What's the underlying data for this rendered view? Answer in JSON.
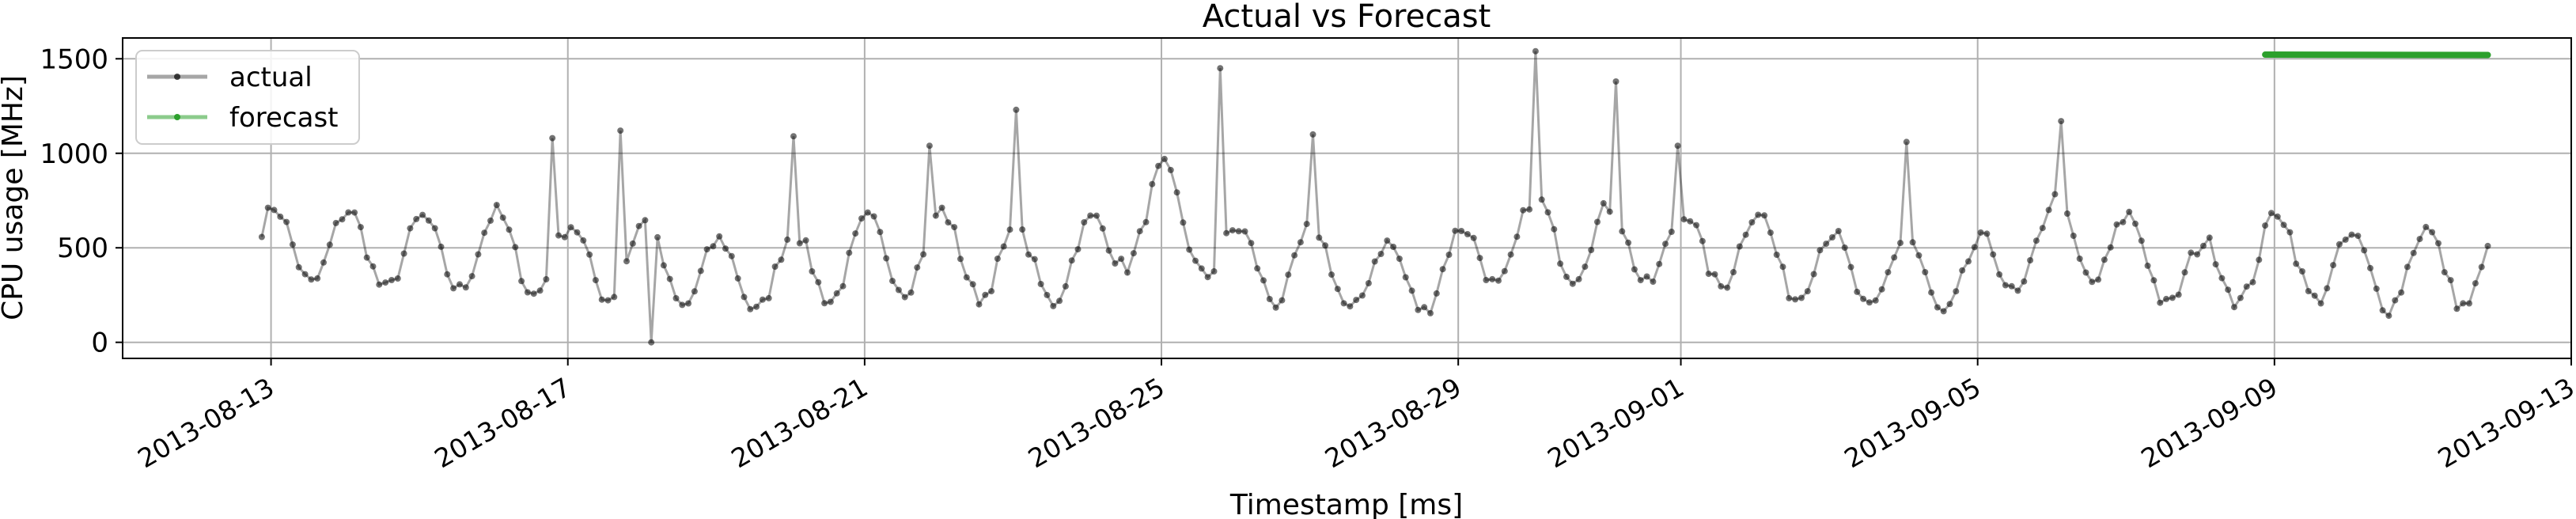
{
  "chart_data": {
    "type": "line",
    "title": "Actual vs Forecast",
    "xlabel": "Timestamp [ms]",
    "ylabel": "CPU usage [MHz]",
    "x_range": [
      "2013-08-11",
      "2013-09-13"
    ],
    "ylim": [
      -85,
      1610
    ],
    "x_ticks": [
      "2013-08-13",
      "2013-08-17",
      "2013-08-21",
      "2013-08-25",
      "2013-08-29",
      "2013-09-01",
      "2013-09-05",
      "2013-09-09",
      "2013-09-13"
    ],
    "y_ticks": [
      0,
      500,
      1000,
      1500
    ],
    "grid": true,
    "legend": {
      "position": "top-left",
      "entries": [
        "actual",
        "forecast"
      ]
    },
    "series": [
      {
        "name": "actual",
        "color": "#000000",
        "style": "line with dot markers",
        "x_start": "2013-08-12T21:00",
        "x_end": "2013-09-11T21:00",
        "sample_interval_hours": 2,
        "daily_pattern": {
          "trough_mhz": 300,
          "peak_mhz": 700,
          "peak_hour": 1
        },
        "y_at_midnight_daily": [
          720,
          700,
          660,
          690,
          620,
          640,
          540,
          580,
          650,
          700,
          580,
          640,
          940,
          600,
          620,
          520,
          600,
          780,
          720,
          690,
          700,
          580,
          560,
          530,
          760,
          680,
          520,
          700,
          560,
          600,
          580
        ],
        "spikes": [
          {
            "x": "2013-08-16T20:00",
            "y": 1080
          },
          {
            "x": "2013-08-17T17:00",
            "y": 1120
          },
          {
            "x": "2013-08-18T03:00",
            "y": 0
          },
          {
            "x": "2013-08-20T01:00",
            "y": 1090
          },
          {
            "x": "2013-08-21T21:00",
            "y": 1040
          },
          {
            "x": "2013-08-23T01:00",
            "y": 1230
          },
          {
            "x": "2013-08-25T20:00",
            "y": 1450
          },
          {
            "x": "2013-08-27T02:00",
            "y": 1100
          },
          {
            "x": "2013-08-30T02:00",
            "y": 1540
          },
          {
            "x": "2013-08-31T04:00",
            "y": 1380
          },
          {
            "x": "2013-08-31T23:00",
            "y": 1040
          },
          {
            "x": "2013-09-04T02:00",
            "y": 1060
          },
          {
            "x": "2013-09-06T03:00",
            "y": 1170
          }
        ]
      },
      {
        "name": "forecast",
        "color": "#2ca02c",
        "x_start": "2013-09-08T21:00",
        "x_end": "2013-09-11T21:00",
        "y_start": 1522,
        "y_end": 1520
      }
    ]
  }
}
